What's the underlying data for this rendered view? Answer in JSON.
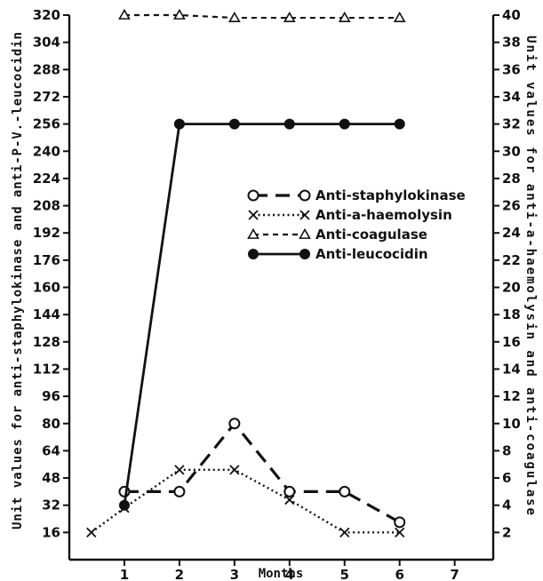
{
  "chart_data": {
    "type": "line",
    "xlabel": "Months",
    "ylabel_left": "Unit values for anti-staphylokinase and anti-P-V.-leucocidin",
    "ylabel_right": "Unit values for anti-a-haemolysin and anti-coagulase",
    "x_ticks": [
      1,
      2,
      3,
      4,
      5,
      6,
      7
    ],
    "y_left_ticks": [
      16,
      32,
      48,
      64,
      80,
      96,
      112,
      128,
      144,
      160,
      176,
      192,
      208,
      224,
      240,
      256,
      272,
      288,
      304,
      320
    ],
    "y_right_ticks": [
      2,
      4,
      6,
      8,
      10,
      12,
      14,
      16,
      18,
      20,
      22,
      24,
      26,
      28,
      30,
      32,
      34,
      36,
      38,
      40
    ],
    "xlim": [
      0,
      7.7
    ],
    "ylim_left": [
      0,
      320
    ],
    "ylim_right": [
      0,
      40
    ],
    "legend_position": "center-right",
    "series": [
      {
        "name": "Anti-staphylokinase",
        "axis": "left",
        "marker": "o",
        "line": "long-dash",
        "points": [
          [
            1,
            40
          ],
          [
            2,
            40
          ],
          [
            3,
            80
          ],
          [
            4,
            40
          ],
          [
            5,
            40
          ],
          [
            6,
            22
          ]
        ]
      },
      {
        "name": "Anti-a-haemolysin",
        "axis": "right",
        "marker": "x",
        "line": "dotted",
        "points": [
          [
            0.4,
            2
          ],
          [
            1,
            3.8
          ],
          [
            2,
            6.6
          ],
          [
            3,
            6.6
          ],
          [
            4,
            4.4
          ],
          [
            5,
            2
          ],
          [
            6,
            2
          ]
        ]
      },
      {
        "name": "Anti-coagulase",
        "axis": "right",
        "marker": "triangle",
        "line": "short-dash",
        "points": [
          [
            1,
            40
          ],
          [
            2,
            40
          ],
          [
            3,
            39.8
          ],
          [
            4,
            39.8
          ],
          [
            5,
            39.8
          ],
          [
            6,
            39.8
          ]
        ]
      },
      {
        "name": "Anti-leucocidin",
        "axis": "left",
        "marker": "filled-circle",
        "line": "solid",
        "points": [
          [
            1,
            32
          ],
          [
            2,
            256
          ],
          [
            3,
            256
          ],
          [
            4,
            256
          ],
          [
            5,
            256
          ],
          [
            6,
            256
          ]
        ]
      }
    ]
  }
}
